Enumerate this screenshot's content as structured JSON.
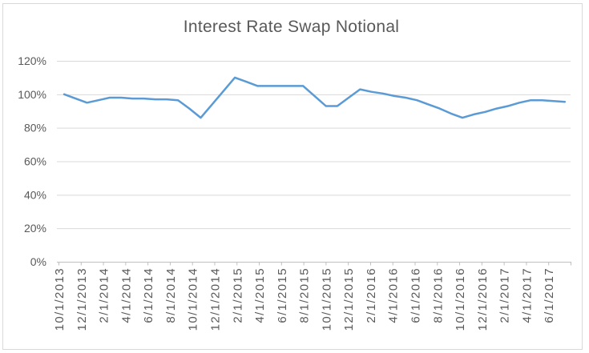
{
  "chart_data": {
    "type": "line",
    "title": "Interest Rate Swap Notional",
    "unit": "%",
    "ylim": [
      0,
      120
    ],
    "y_tick_values": [
      0,
      20,
      40,
      60,
      80,
      100,
      120
    ],
    "y_tick_labels": [
      "0%",
      "20%",
      "40%",
      "60%",
      "80%",
      "100%",
      "120%"
    ],
    "x_tick_labels": [
      "10/1/2013",
      "12/1/2013",
      "2/1/2014",
      "4/1/2014",
      "6/1/2014",
      "8/1/2014",
      "10/1/2014",
      "12/1/2014",
      "2/1/2015",
      "4/1/2015",
      "6/1/2015",
      "8/1/2015",
      "10/1/2015",
      "12/1/2015",
      "2/1/2016",
      "4/1/2016",
      "6/1/2016",
      "8/1/2016",
      "10/1/2016",
      "12/1/2016",
      "2/1/2017",
      "4/1/2017",
      "6/1/2017"
    ],
    "x_label_interval": 2,
    "grid": "horizontal",
    "legend": "none",
    "series": [
      {
        "x": [
          "10/1/2013",
          "11/1/2013",
          "12/1/2013",
          "1/1/2014",
          "2/1/2014",
          "3/1/2014",
          "4/1/2014",
          "5/1/2014",
          "6/1/2014",
          "7/1/2014",
          "8/1/2014",
          "9/1/2014",
          "10/1/2014",
          "11/1/2014",
          "12/1/2014",
          "1/1/2015",
          "2/1/2015",
          "3/1/2015",
          "4/1/2015",
          "5/1/2015",
          "6/1/2015",
          "7/1/2015",
          "8/1/2015",
          "9/1/2015",
          "10/1/2015",
          "11/1/2015",
          "12/1/2015",
          "1/1/2016",
          "2/1/2016",
          "3/1/2016",
          "4/1/2016",
          "5/1/2016",
          "6/1/2016",
          "7/1/2016",
          "8/1/2016",
          "9/1/2016",
          "10/1/2016",
          "11/1/2016",
          "12/1/2016",
          "1/1/2017",
          "2/1/2017",
          "3/1/2017",
          "4/1/2017",
          "5/1/2017",
          "6/1/2017"
        ],
        "values": [
          100,
          97.5,
          95,
          96.5,
          98,
          98,
          97.5,
          97.5,
          97,
          97,
          96.5,
          91.5,
          86,
          94,
          102,
          110,
          107.5,
          105,
          105,
          105,
          105,
          105,
          99,
          93,
          93,
          98,
          103,
          101.5,
          100.5,
          99,
          98,
          96.5,
          94,
          91.5,
          88.5,
          86,
          88,
          89.5,
          91.5,
          93,
          95,
          96.5,
          96.5,
          96,
          95.5
        ]
      }
    ],
    "colors": {
      "line": "#5B9BD5",
      "gridline": "#D9D9D9",
      "axis": "#BFBFBF",
      "text": "#595959",
      "border": "#D9D9D9",
      "background": "#FFFFFF"
    }
  }
}
